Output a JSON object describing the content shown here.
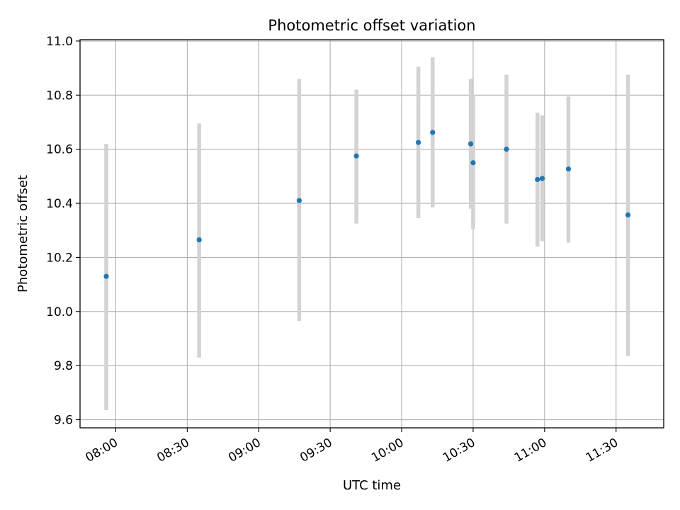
{
  "chart_data": {
    "type": "scatter",
    "title": "Photometric offset variation",
    "xlabel": "UTC time",
    "ylabel": "Photometric offset",
    "xlim": [
      "07:45",
      "11:50"
    ],
    "ylim": [
      9.57,
      11.005
    ],
    "x_ticks": [
      "08:00",
      "08:30",
      "09:00",
      "09:30",
      "10:00",
      "10:30",
      "11:00",
      "11:30"
    ],
    "y_ticks": [
      "9.6",
      "9.8",
      "10.0",
      "10.2",
      "10.4",
      "10.6",
      "10.8",
      "11.0"
    ],
    "grid": true,
    "legend": "none",
    "series": [
      {
        "points": [
          {
            "x": "07:56",
            "y": 10.13,
            "err_low": 9.635,
            "err_high": 10.62
          },
          {
            "x": "08:35",
            "y": 10.265,
            "err_low": 9.83,
            "err_high": 10.695
          },
          {
            "x": "09:17",
            "y": 10.41,
            "err_low": 9.965,
            "err_high": 10.86
          },
          {
            "x": "09:41",
            "y": 10.575,
            "err_low": 10.325,
            "err_high": 10.82
          },
          {
            "x": "10:07",
            "y": 10.625,
            "err_low": 10.345,
            "err_high": 10.905
          },
          {
            "x": "10:13",
            "y": 10.662,
            "err_low": 10.385,
            "err_high": 10.94
          },
          {
            "x": "10:29",
            "y": 10.62,
            "err_low": 10.38,
            "err_high": 10.86
          },
          {
            "x": "10:30",
            "y": 10.55,
            "err_low": 10.305,
            "err_high": 10.8
          },
          {
            "x": "10:44",
            "y": 10.6,
            "err_low": 10.325,
            "err_high": 10.875
          },
          {
            "x": "10:57",
            "y": 10.488,
            "err_low": 10.24,
            "err_high": 10.735
          },
          {
            "x": "10:59",
            "y": 10.492,
            "err_low": 10.26,
            "err_high": 10.725
          },
          {
            "x": "11:10",
            "y": 10.527,
            "err_low": 10.255,
            "err_high": 10.795
          },
          {
            "x": "11:35",
            "y": 10.357,
            "err_low": 9.835,
            "err_high": 10.875
          }
        ]
      }
    ],
    "marker_color": "#1f77b4",
    "errorbar_color": "#d3d3d3"
  }
}
